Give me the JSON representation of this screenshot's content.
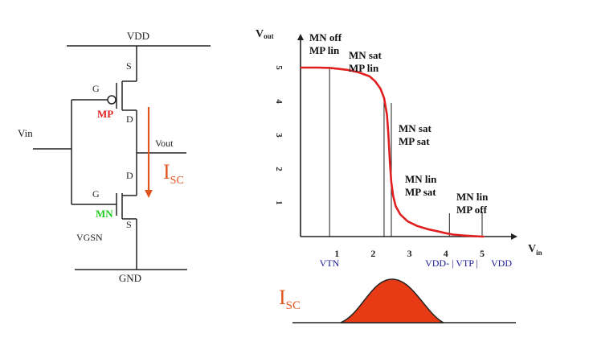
{
  "circuit": {
    "vdd": "VDD",
    "gnd": "GND",
    "vin": "Vin",
    "vout": "Vout",
    "vgsn": "VGSN",
    "pmos": {
      "label": "MP",
      "color": "#e02020",
      "gate": "G",
      "source": "S",
      "drain": "D"
    },
    "nmos": {
      "label": "MN",
      "color": "#22cc22",
      "gate": "G",
      "source": "S",
      "drain": "D"
    },
    "current_label": "I",
    "current_sub": "SC",
    "accent": "#e2541e"
  },
  "chart_data": {
    "type": "line",
    "title": "",
    "ylabel": "V",
    "ylabel_sub": "out",
    "xlabel": "V",
    "xlabel_sub": "in",
    "xlim": [
      0,
      6.0
    ],
    "ylim": [
      0,
      5.6
    ],
    "xticks": [
      "1",
      "2",
      "3",
      "4",
      "5"
    ],
    "yticks": [
      "1",
      "2",
      "3",
      "4",
      "5"
    ],
    "series": [
      {
        "color": "#e02020",
        "x": [
          0,
          0.5,
          0.8,
          1.0,
          1.3,
          1.6,
          1.9,
          2.05,
          2.2,
          2.3,
          2.38,
          2.42,
          2.46,
          2.5,
          2.55,
          2.62,
          2.75,
          2.95,
          3.2,
          3.5,
          3.8,
          4.0,
          4.2,
          4.5,
          4.8,
          5.0,
          5.05
        ],
        "y": [
          5.0,
          5.0,
          4.99,
          4.97,
          4.93,
          4.86,
          4.74,
          4.6,
          4.38,
          4.1,
          3.6,
          3.0,
          2.2,
          1.6,
          1.2,
          0.9,
          0.65,
          0.45,
          0.32,
          0.22,
          0.15,
          0.1,
          0.06,
          0.03,
          0.01,
          0.0,
          0.0
        ]
      }
    ],
    "vlines": [
      0.8,
      2.3,
      2.5,
      4.1,
      5.0
    ],
    "below_axis_labels": {
      "vtn": "VTN",
      "vdd_vtp": "VDD- | VTP |",
      "vdd": "VDD",
      "color": "#1a1a9a"
    },
    "regions": [
      {
        "line1": "MN off",
        "line2": "MP lin"
      },
      {
        "line1": "MN sat",
        "line2": "MP lin"
      },
      {
        "line1": "MN sat",
        "line2": "MP sat"
      },
      {
        "line1": "MN lin",
        "line2": "MP sat"
      },
      {
        "line1": "MN lin",
        "line2": "MP off"
      }
    ]
  },
  "isc_plot": {
    "label": "I",
    "label_sub": "SC",
    "fill": "#e83a14",
    "color": "#e2541e"
  }
}
